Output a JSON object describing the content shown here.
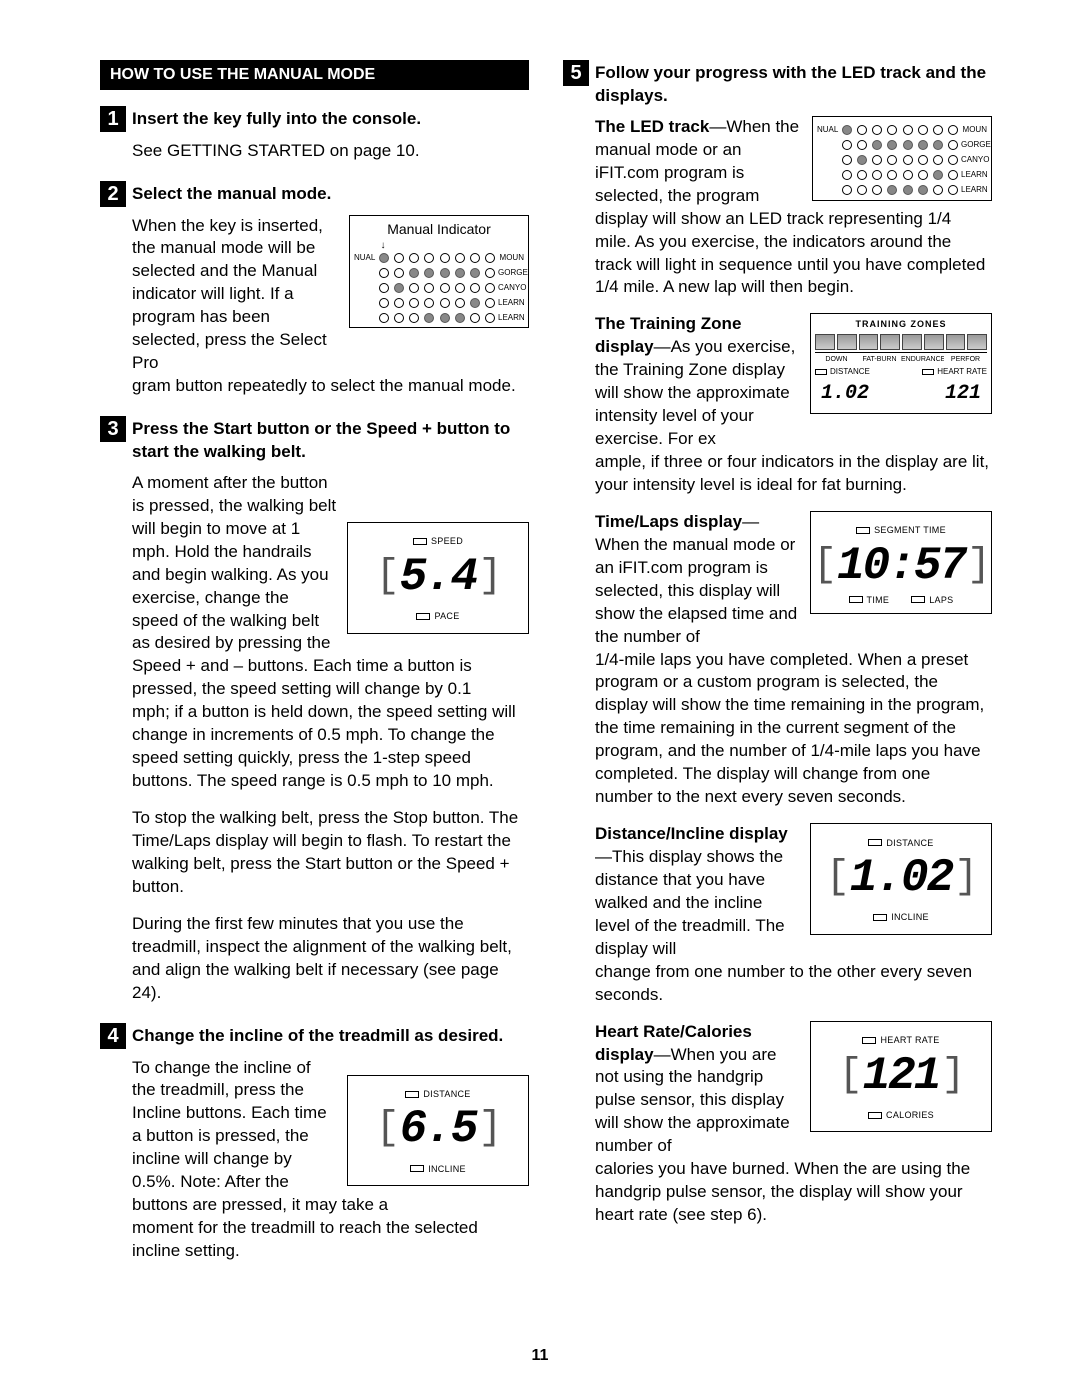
{
  "page_number": "11",
  "section_header": "HOW TO USE THE MANUAL MODE",
  "left": {
    "step1": {
      "num": "1",
      "title": "Insert the key fully into the console.",
      "p1": "See GETTING STARTED on page 10."
    },
    "step2": {
      "num": "2",
      "title": "Select the manual mode.",
      "p1a": "When the key is inserted, the manual mode will be selected and the Manual indicator will light. If a program has been selected, press the Select Pro",
      "p1b": "gram button repeatedly to select the manual mode.",
      "fig": {
        "caption": "Manual Indicator",
        "left_labels": [
          "NUAL",
          "",
          "",
          "",
          ""
        ],
        "right_labels": [
          "MOUN",
          "GORGE",
          "CANYO",
          "LEARN",
          "LEARN"
        ],
        "rows_on": [
          [
            1,
            0,
            0,
            0,
            0,
            0,
            0,
            0
          ],
          [
            0,
            0,
            1,
            1,
            1,
            1,
            1,
            0
          ],
          [
            0,
            1,
            0,
            0,
            0,
            0,
            0,
            0
          ],
          [
            0,
            0,
            0,
            0,
            0,
            0,
            1,
            0
          ],
          [
            0,
            0,
            0,
            1,
            1,
            1,
            0,
            0
          ]
        ]
      }
    },
    "step3": {
      "num": "3",
      "title": "Press the Start button or the Speed + button to start the walking belt.",
      "p1a": "A moment after the button is pressed, the walking belt will begin to move at 1 mph. Hold the handrails and begin walking. As you exercise, change the speed of the walking belt as desired by pressing the Speed + and – buttons. Each time a button is pressed, the speed setting will change by 0.1 ",
      "p1b": "mph; if a button is held down, the speed setting will change in increments of 0.5 mph. To change the speed setting quickly, press the 1-step speed buttons. The speed range is 0.5 mph to 10 mph.",
      "p2": "To stop the walking belt, press the Stop button. The Time/Laps display will begin to flash. To restart the walking belt, press the Start button or the Speed + button.",
      "p3": "During the first few minutes that you use the treadmill, inspect the alignment of the walking belt, and align the walking belt if necessary (see page 24).",
      "fig": {
        "top_label": "SPEED",
        "value": "5.4",
        "bottom_label": "PACE"
      }
    },
    "step4": {
      "num": "4",
      "title": "Change the incline of the treadmill as desired.",
      "p1a": "To change the incline of the treadmill, press the Incline buttons. Each time a button is pressed, the incline will change by 0.5%. Note: After the buttons are pressed, it may take a ",
      "p1b": "moment for the treadmill to reach the selected incline setting.",
      "fig": {
        "top_label": "DISTANCE",
        "value": "6.5",
        "bottom_label": "INCLINE"
      }
    }
  },
  "right": {
    "step5": {
      "num": "5",
      "title": "Follow your progress with the LED track and the displays.",
      "led": {
        "lead": "The LED track",
        "p1a": "—When the manual mode or an iFIT.com program is selected, the program display will show an LED track representing 1/4 ",
        "p1b": "mile. As you exercise, the indicators around the track will light in sequence until you have completed 1/4 mile. A new lap will then begin.",
        "fig": {
          "left_labels": [
            "NUAL",
            "",
            "",
            "",
            ""
          ],
          "right_labels": [
            "MOUN",
            "GORGE",
            "CANYO",
            "LEARN",
            "LEARN"
          ],
          "rows_on": [
            [
              1,
              0,
              0,
              0,
              0,
              0,
              0,
              0
            ],
            [
              0,
              0,
              1,
              1,
              1,
              1,
              1,
              0
            ],
            [
              0,
              1,
              0,
              0,
              0,
              0,
              0,
              0
            ],
            [
              0,
              0,
              0,
              0,
              0,
              0,
              1,
              0
            ],
            [
              0,
              0,
              0,
              1,
              1,
              1,
              0,
              0
            ]
          ]
        }
      },
      "zone": {
        "lead": "The Training Zone dis",
        "p1a": "—As you exercise, the Training Zone display will show the approximate intensity level of your exercise. For ex",
        "lead2": "play",
        "p1b": "ample, if three or four indicators in the display are lit, your intensity level is ideal for fat burning.",
        "fig": {
          "title": "TRAINING ZONES",
          "zones": [
            "DOWN",
            "FAT-BURN",
            "ENDURANCE",
            "PERFOR"
          ],
          "seg_left_label": "DISTANCE",
          "seg_right_label": "HEART RATE",
          "val_left": "1.02",
          "val_right": "121"
        }
      },
      "time": {
        "lead": "Time/Laps display",
        "p1a": "—When the manual mode or an iFIT.com program is selected, this display will show the elapsed time and the number of ",
        "p1b": "1/4-mile laps you have completed. When a preset program or a custom program is selected, the display will show the time remaining in the program, the time remaining in the current segment of the program, and the number of 1/4-mile laps you have completed. The display will change from one number to the next every seven seconds.",
        "fig": {
          "top_label": "SEGMENT TIME",
          "value": "10:57",
          "bottom_left": "TIME",
          "bottom_right": "LAPS"
        }
      },
      "dist": {
        "lead": "Distance/Incline dis",
        "lead2": "play",
        "p1a": "—This display shows the distance that you have walked and the incline level of the treadmill. The display will ",
        "p1b": "change from one number to the other every seven seconds.",
        "fig": {
          "top_label": "DISTANCE",
          "value": "1.02",
          "bottom_label": "INCLINE"
        }
      },
      "hr": {
        "lead": "Heart Rate/Calories display",
        "p1a": "—When you are not using the handgrip pulse sensor, this display will show the approximate number of ",
        "p1b": "calories you have burned. When the are using the handgrip pulse sensor, the display will show your heart rate (see step 6).",
        "fig": {
          "top_label": "HEART RATE",
          "value": "121",
          "bottom_label": "CALORIES"
        }
      }
    }
  }
}
